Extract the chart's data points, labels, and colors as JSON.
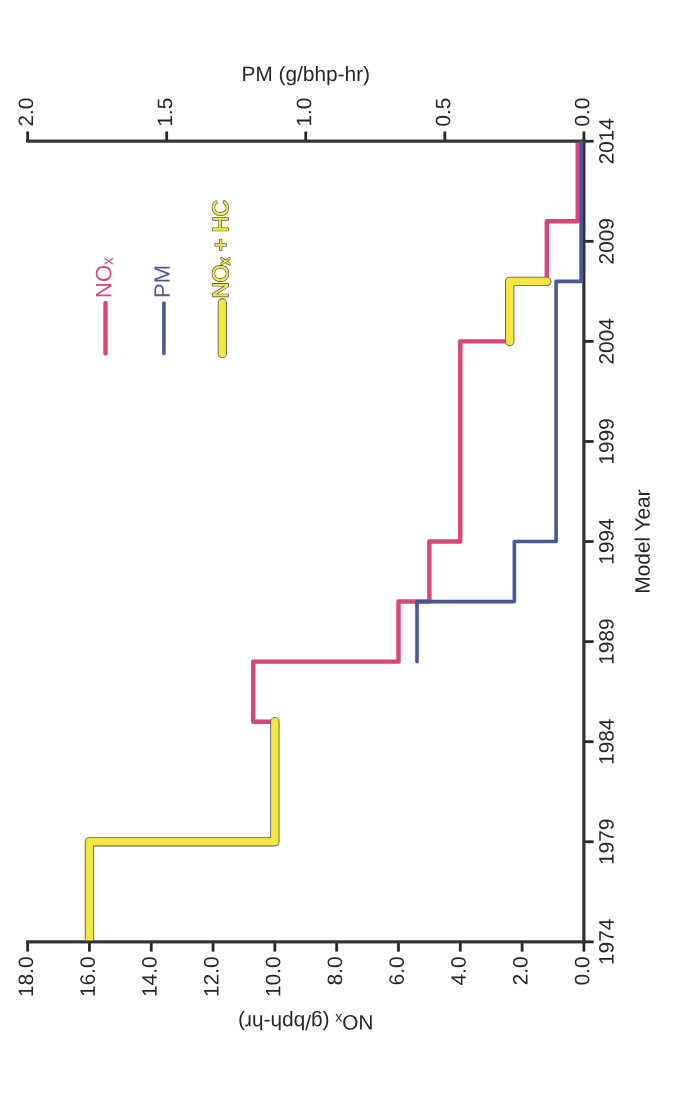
{
  "chart_data": {
    "type": "step",
    "orientation": "horizontal",
    "xlabel": "NOₓ (g/bph-hr)",
    "x2label": "PM (g/bhp-hr)",
    "ylabel": "Model Year",
    "xlim": [
      18,
      0
    ],
    "xticks": [
      {
        "value": 18,
        "label": "18.0"
      },
      {
        "value": 16,
        "label": "16.0"
      },
      {
        "value": 14,
        "label": "14.0"
      },
      {
        "value": 12,
        "label": "12.0"
      },
      {
        "value": 10,
        "label": "10.0"
      },
      {
        "value": 8,
        "label": "8.0"
      },
      {
        "value": 6,
        "label": "6.0"
      },
      {
        "value": 4,
        "label": "4.0"
      },
      {
        "value": 2,
        "label": "2.0"
      },
      {
        "value": 0,
        "label": "0.0"
      }
    ],
    "x2lim": [
      2,
      0
    ],
    "x2ticks": [
      {
        "value": 2,
        "label": "2.0"
      },
      {
        "value": 1.5,
        "label": "1.5"
      },
      {
        "value": 1,
        "label": "1.0"
      },
      {
        "value": 0.5,
        "label": "0.5"
      },
      {
        "value": 0,
        "label": "0.0"
      }
    ],
    "ylim": [
      1974,
      2014
    ],
    "yticks": [
      1974,
      1979,
      1984,
      1989,
      1994,
      1999,
      2004,
      2009,
      2014
    ],
    "legend": "top left",
    "grid": false,
    "marker": "none",
    "series": [
      {
        "name": "NOₓ",
        "color": "#d9467c",
        "x": [
          1985,
          1985,
          1988,
          1991,
          1994,
          2004
        ],
        "values": [
          10.0,
          10.7,
          6.0,
          5.0,
          4.0,
          2.4
        ]
      },
      {
        "color": "#d9467c",
        "x": [
          2007,
          2010,
          2014
        ],
        "values": [
          1.2,
          0.2,
          0.2
        ]
      },
      {
        "name": "PM",
        "color": "#4a5795",
        "axis": "x2",
        "x": [
          1988,
          1991,
          1994,
          2007,
          2014
        ],
        "values": [
          0.6,
          0.25,
          0.1,
          0.01,
          0.01
        ]
      },
      {
        "name": "NOₓ + HC",
        "color": "#f2e640",
        "x": [
          1974,
          1979,
          1985
        ],
        "values": [
          16.0,
          10.0,
          10.0
        ]
      },
      {
        "color": "#f2e640",
        "x": [
          2004,
          2007
        ],
        "values": [
          2.4,
          1.2
        ]
      }
    ]
  }
}
